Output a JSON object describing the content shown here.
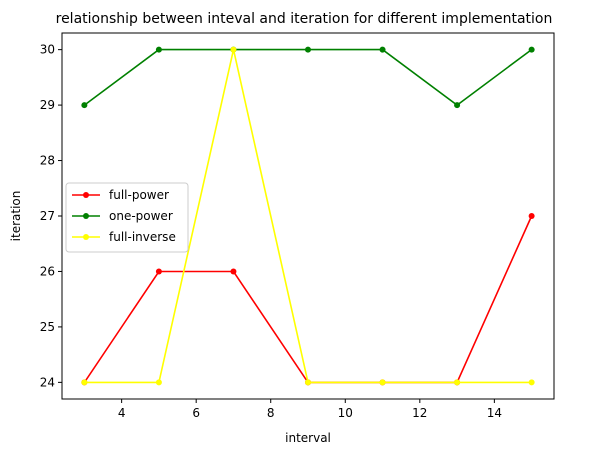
{
  "chart_data": {
    "type": "line",
    "title": "relationship between inteval and iteration for different implementation",
    "xlabel": "interval",
    "ylabel": "iteration",
    "x": [
      3,
      5,
      7,
      9,
      11,
      13,
      15
    ],
    "xlim": [
      2.4,
      15.6
    ],
    "ylim": [
      23.7,
      30.3
    ],
    "xticks": [
      4,
      6,
      8,
      10,
      12,
      14
    ],
    "yticks": [
      24,
      25,
      26,
      27,
      28,
      29,
      30
    ],
    "grid": false,
    "legend_position": "center-left",
    "series": [
      {
        "name": "full-power",
        "color": "#ff0000",
        "values": [
          24,
          26,
          26,
          24,
          24,
          24,
          27
        ]
      },
      {
        "name": "one-power",
        "color": "#008000",
        "values": [
          29,
          30,
          30,
          30,
          30,
          29,
          30
        ]
      },
      {
        "name": "full-inverse",
        "color": "#ffff00",
        "values": [
          24,
          24,
          30,
          24,
          24,
          24,
          24
        ]
      }
    ]
  }
}
